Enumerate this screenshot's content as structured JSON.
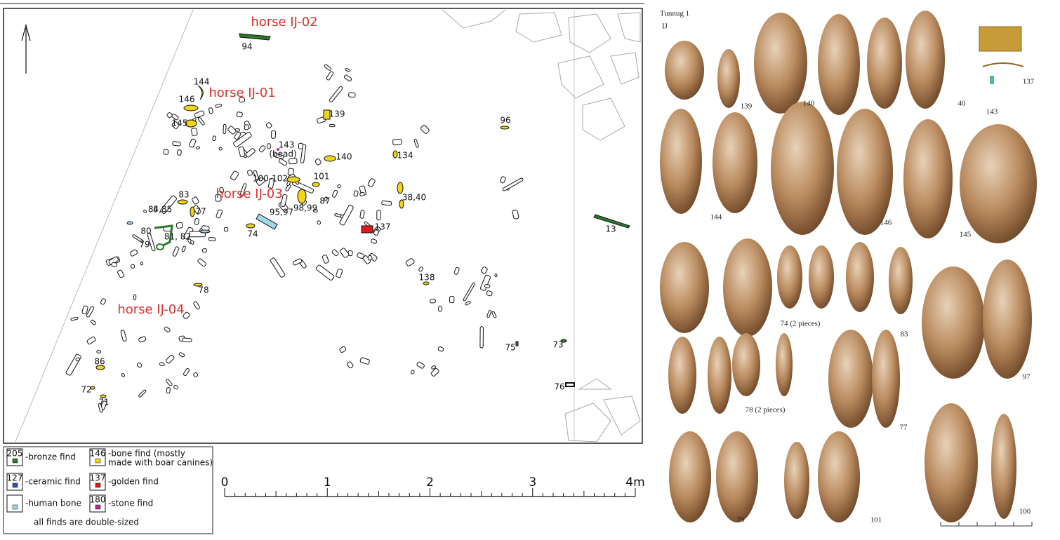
{
  "plan": {
    "horses": [
      "horse IJ-02",
      "horse IJ-01",
      "horse IJ-03",
      "horse IJ-04"
    ],
    "find_labels": [
      "94",
      "144",
      "146",
      "145",
      "143",
      "(bead)",
      "139",
      "140",
      "100-102",
      "101",
      "134",
      "96",
      "83",
      "77",
      "84,85",
      "80",
      "81, 82",
      "79",
      "95,97",
      "98,99",
      "87",
      "38,40",
      "74",
      "137",
      "13",
      "78",
      "138",
      "86",
      "72",
      "71",
      "75",
      "73",
      "76"
    ]
  },
  "legend": {
    "items": [
      {
        "number": "205",
        "text": "-bronze find"
      },
      {
        "number": "127",
        "text": "-ceramic find"
      },
      {
        "text": "-human bone"
      },
      {
        "number": "146",
        "text": [
          "-bone find (mostly",
          "made with boar canines)"
        ]
      },
      {
        "number": "137",
        "text": "-golden find"
      },
      {
        "number": "180",
        "text": "-stone find"
      }
    ],
    "note": "all finds are double-sized"
  },
  "scale": [
    "0",
    "1",
    "2",
    "3",
    "4m"
  ],
  "photos": {
    "site": "Tunnug 1",
    "area": "IJ",
    "captions": [
      "139",
      "140",
      "40",
      "137",
      "143",
      "144",
      "146",
      "145",
      "74 (2 pieces)",
      "83",
      "97",
      "78 (2 pieces)",
      "77",
      "79",
      "101",
      "100"
    ]
  }
}
